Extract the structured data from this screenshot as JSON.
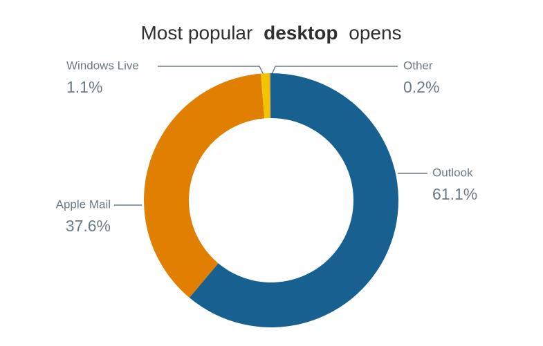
{
  "chart_data": {
    "type": "donut",
    "title_parts": [
      "Most popular",
      "desktop",
      "opens"
    ],
    "categories": [
      "Outlook",
      "Apple Mail",
      "Windows Live",
      "Other"
    ],
    "values": [
      61.1,
      37.6,
      1.1,
      0.2
    ],
    "value_labels": [
      "61.1%",
      "37.6%",
      "1.1%",
      "0.2%"
    ],
    "colors": [
      "#17608f",
      "#e07f00",
      "#f2c500",
      "#7a7a7a"
    ]
  }
}
